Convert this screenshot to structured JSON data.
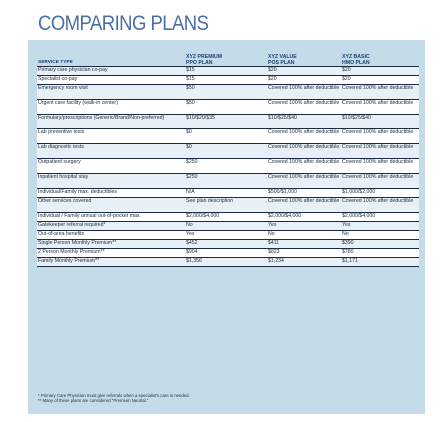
{
  "title": "COMPARING PLANS",
  "headers": {
    "service": "SERVICE TYPE",
    "plans": [
      {
        "line1": "XYZ PREMIUM",
        "line2": "PPO PLAN"
      },
      {
        "line1": "XYZ VALUE",
        "line2": "POS PLAN"
      },
      {
        "line1": "XYZ BASIC",
        "line2": "HMO PLAN"
      }
    ]
  },
  "rows": [
    {
      "service": "Primary care physician co-pay",
      "values": [
        "$15",
        "$20",
        "$20"
      ]
    },
    {
      "service": "Specialist co-pay",
      "values": [
        "$15",
        "$20",
        "$20"
      ]
    },
    {
      "service": "Emergency room visit",
      "values": [
        "$50",
        "Covered 100% after deductible",
        "Covered 100% after deductible"
      ]
    },
    {
      "service": "Urgent care facility (walk-in center)",
      "values": [
        "$50",
        "Covered 100% after deductible",
        "Covered 100% after deductible"
      ]
    },
    {
      "service": "Formulary/prescriptions (Generic/Brand/Non-preferred)",
      "values": [
        "$10/$20/$35",
        "$10/$25/$40",
        "$10/$25/$40"
      ]
    },
    {
      "service": "Lab preventive tests",
      "values": [
        "$0",
        "Covered 100% after deductible",
        "Covered 100% after deductible"
      ]
    },
    {
      "service": "Lab diagnostic tests",
      "values": [
        "$0",
        "Covered 100% after deductible",
        "Covered 100% after deductible"
      ]
    },
    {
      "service": "Outpatient surgery",
      "values": [
        "$250",
        "Covered 100% after deductible",
        "Covered 100% after deductible"
      ]
    },
    {
      "service": "Inpatient hospital stay",
      "values": [
        "$250",
        "Covered 100% after deductible",
        "Covered 100% after deductible"
      ]
    },
    {
      "service": "Individual/Family max. deductibles",
      "values": [
        "N/A",
        "$500/$1,000",
        "$1,000/$2,000"
      ]
    },
    {
      "service": "Other services covered",
      "values": [
        "See plan description",
        "Covered 100% after deductible",
        "Covered 100% after deductible"
      ]
    },
    {
      "service": "Individual / Family annual out-of-pocket max.",
      "values": [
        "$2,000/$4,000",
        "$2,000/$4,000",
        "$2,000/$4,000"
      ]
    },
    {
      "service": "Gatekeeper referral required*",
      "values": [
        "No",
        "Yes",
        "Yes"
      ]
    },
    {
      "service": "Out-of-area benefits",
      "values": [
        "Yes",
        "No",
        "No"
      ]
    },
    {
      "service": "Single Person Monthly Premium**",
      "values": [
        "$452",
        "$411",
        "$390"
      ]
    },
    {
      "service": "2 Person Monthly Premium**",
      "values": [
        "$904",
        "$823",
        "$780"
      ]
    },
    {
      "service": "Family Monthly Premium**",
      "values": [
        "$1,356",
        "$1,234",
        "$1,171"
      ]
    }
  ],
  "footnotes": [
    "* Primary Care Physician must give referrals when a specialist's care is needed.",
    "** Many of these plans are considered \"Premium Neutral.\""
  ]
}
